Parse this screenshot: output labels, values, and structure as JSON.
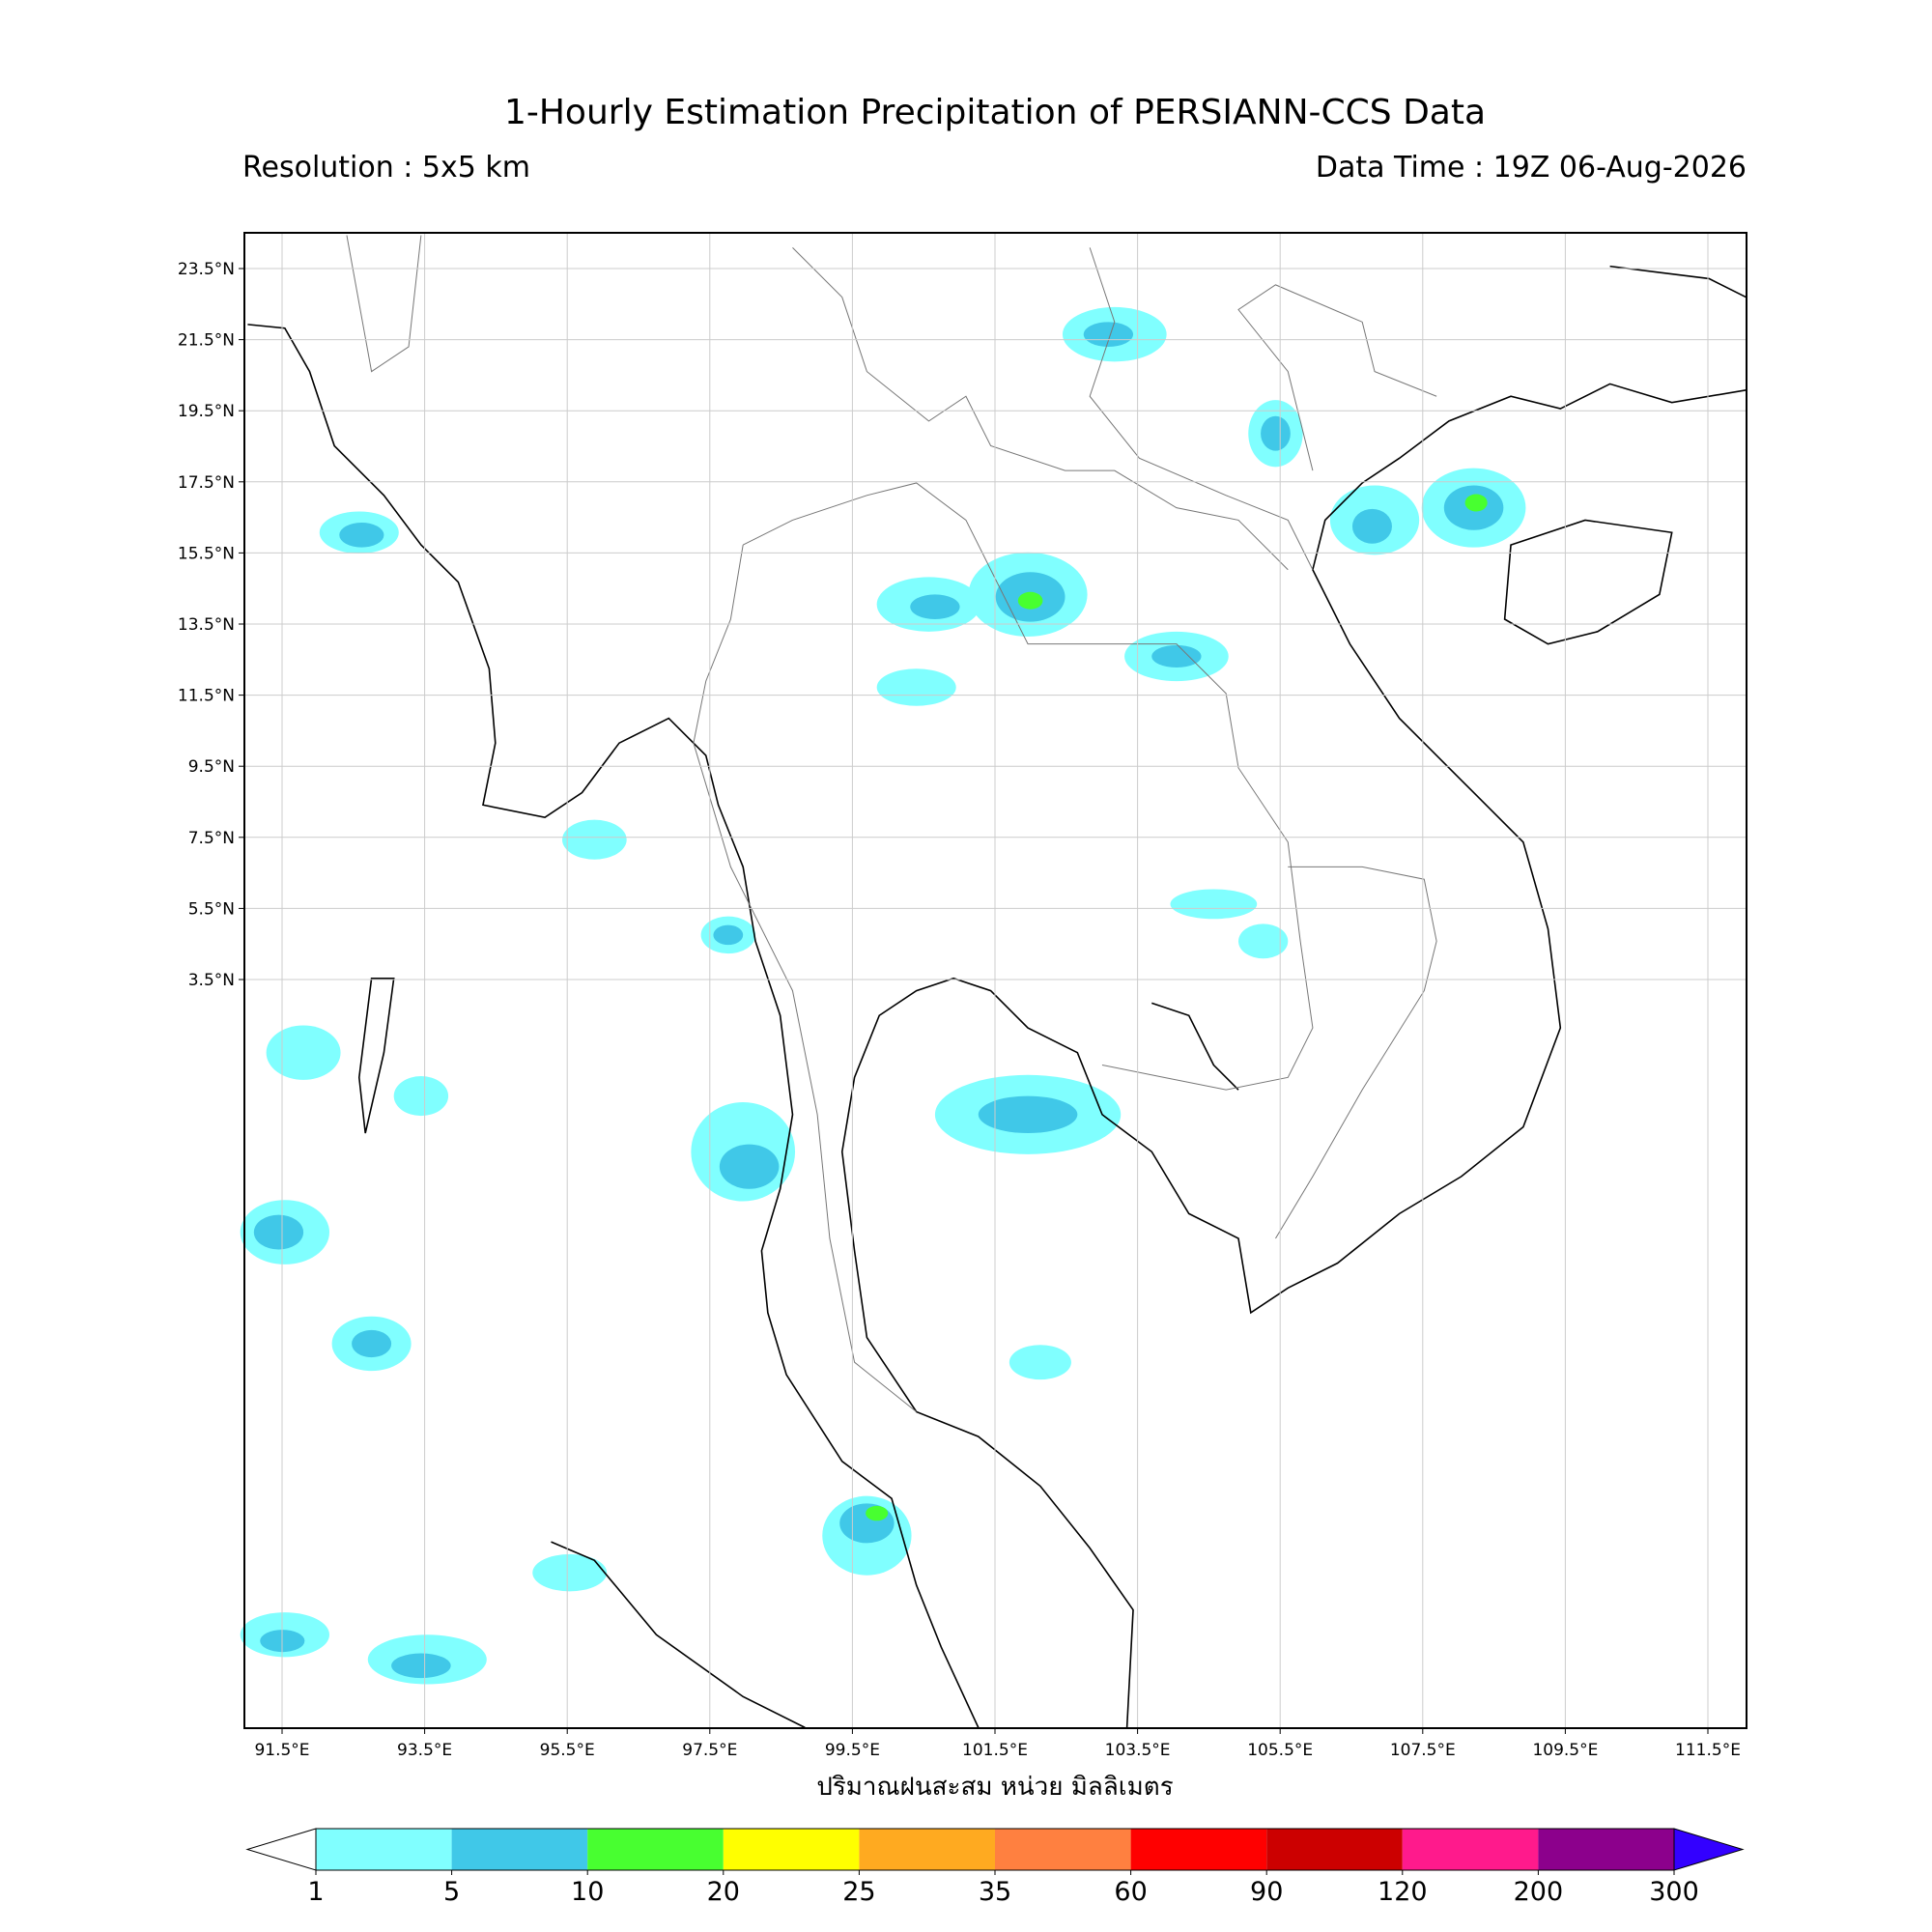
{
  "header": {
    "title": "1-Hourly Estimation Precipitation of PERSIANN-CCS Data",
    "resolution": "Resolution : 5x5 km",
    "data_time": "Data Time : 19Z 06-Aug-2026"
  },
  "map": {
    "lat_ticks": [
      {
        "value": 23.5,
        "label": "23.5°N"
      },
      {
        "value": 21.5,
        "label": "21.5°N"
      },
      {
        "value": 19.5,
        "label": "19.5°N"
      },
      {
        "value": 17.5,
        "label": "17.5°N"
      },
      {
        "value": 15.5,
        "label": "15.5°N"
      },
      {
        "value": 13.5,
        "label": "13.5°N"
      },
      {
        "value": 11.5,
        "label": "11.5°N"
      },
      {
        "value": 9.5,
        "label": "9.5°N"
      },
      {
        "value": 7.5,
        "label": "7.5°N"
      },
      {
        "value": 5.5,
        "label": "5.5°N"
      },
      {
        "value": 3.5,
        "label": "3.5°N"
      }
    ],
    "lon_ticks": [
      {
        "value": 91.5,
        "label": "91.5°E"
      },
      {
        "value": 93.5,
        "label": "93.5°E"
      },
      {
        "value": 95.5,
        "label": "95.5°E"
      },
      {
        "value": 97.5,
        "label": "97.5°E"
      },
      {
        "value": 99.5,
        "label": "99.5°E"
      },
      {
        "value": 101.5,
        "label": "101.5°E"
      },
      {
        "value": 103.5,
        "label": "103.5°E"
      },
      {
        "value": 105.5,
        "label": "105.5°E"
      },
      {
        "value": 107.5,
        "label": "107.5°E"
      },
      {
        "value": 109.5,
        "label": "109.5°E"
      },
      {
        "value": 111.5,
        "label": "111.5°E"
      }
    ],
    "x_label": "ปริมาณฝนสะสม หน่วย มิลลิเมตร"
  },
  "colorbar": {
    "levels": [
      1,
      5,
      10,
      20,
      25,
      35,
      60,
      90,
      120,
      200,
      300
    ],
    "colors": [
      "#80ffff",
      "#40c8e8",
      "#48ff30",
      "#ffff00",
      "#ffaa20",
      "#ff8040",
      "#ff0000",
      "#cc0000",
      "#ff1a8c",
      "#8c008c"
    ],
    "under_color": "#ffffff",
    "over_color": "#3300ff"
  }
}
